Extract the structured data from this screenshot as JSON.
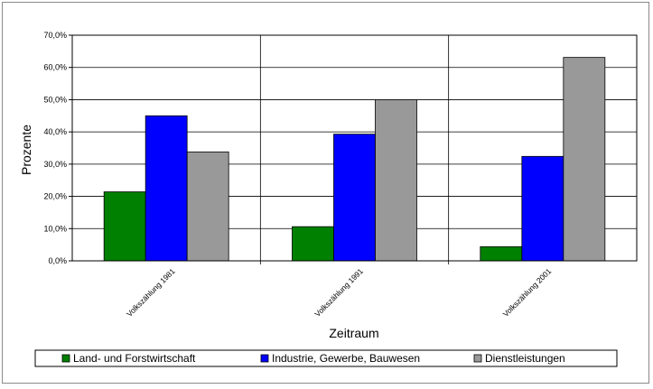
{
  "chart_data": {
    "type": "bar",
    "title": "",
    "xlabel": "Zeitraum",
    "ylabel": "Prozente",
    "categories": [
      "Volkszählung 1981",
      "Volkszählung 1991",
      "Volkszählung 2001"
    ],
    "y_ticks": [
      "0,0%",
      "10,0%",
      "20,0%",
      "30,0%",
      "40,0%",
      "50,0%",
      "60,0%",
      "70,0%"
    ],
    "ylim": [
      0,
      70
    ],
    "grid": true,
    "legend_position": "bottom",
    "series": [
      {
        "name": "Land- und Forstwirtschaft",
        "color": "#008000",
        "values": [
          21.4,
          10.6,
          4.4
        ]
      },
      {
        "name": "Industrie, Gewerbe, Bauwesen",
        "color": "#0000ff",
        "values": [
          45.0,
          39.3,
          32.4
        ]
      },
      {
        "name": "Dienstleistungen",
        "color": "#999999",
        "values": [
          33.8,
          50.0,
          63.1
        ]
      }
    ]
  }
}
